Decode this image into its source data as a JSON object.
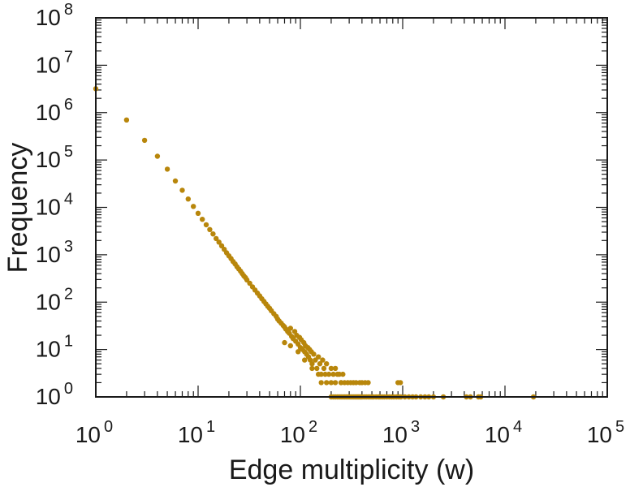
{
  "chart_data": {
    "type": "scatter",
    "title": "",
    "xlabel": "Edge multiplicity (w)",
    "ylabel": "Frequency",
    "x_scale": "log",
    "y_scale": "log",
    "xlim": [
      1,
      100000
    ],
    "ylim": [
      1,
      100000000
    ],
    "x_ticks": [
      {
        "base": "10",
        "exp": "0"
      },
      {
        "base": "10",
        "exp": "1"
      },
      {
        "base": "10",
        "exp": "2"
      },
      {
        "base": "10",
        "exp": "3"
      },
      {
        "base": "10",
        "exp": "4"
      },
      {
        "base": "10",
        "exp": "5"
      }
    ],
    "y_ticks": [
      {
        "base": "10",
        "exp": "0"
      },
      {
        "base": "10",
        "exp": "1"
      },
      {
        "base": "10",
        "exp": "2"
      },
      {
        "base": "10",
        "exp": "3"
      },
      {
        "base": "10",
        "exp": "4"
      },
      {
        "base": "10",
        "exp": "5"
      },
      {
        "base": "10",
        "exp": "6"
      },
      {
        "base": "10",
        "exp": "7"
      },
      {
        "base": "10",
        "exp": "8"
      }
    ],
    "grid": false,
    "marker_color": "#b8860b",
    "series": [
      {
        "points": [
          [
            1,
            3200000
          ],
          [
            2,
            700000
          ],
          [
            3,
            260000
          ],
          [
            4,
            120000
          ],
          [
            5,
            64000
          ],
          [
            6,
            36000
          ],
          [
            7,
            23000
          ],
          [
            8,
            15000
          ],
          [
            9,
            10500
          ],
          [
            10,
            7500
          ],
          [
            11,
            5600
          ],
          [
            12,
            4300
          ],
          [
            13,
            3400
          ],
          [
            14,
            2750
          ],
          [
            15,
            2200
          ],
          [
            16,
            1850
          ],
          [
            17,
            1550
          ],
          [
            18,
            1300
          ],
          [
            19,
            1100
          ],
          [
            20,
            950
          ],
          [
            21,
            830
          ],
          [
            22,
            720
          ],
          [
            23,
            640
          ],
          [
            24,
            560
          ],
          [
            25,
            500
          ],
          [
            26,
            450
          ],
          [
            27,
            400
          ],
          [
            28,
            360
          ],
          [
            29,
            330
          ],
          [
            30,
            295
          ],
          [
            32,
            250
          ],
          [
            34,
            210
          ],
          [
            36,
            180
          ],
          [
            38,
            155
          ],
          [
            40,
            135
          ],
          [
            42,
            118
          ],
          [
            44,
            104
          ],
          [
            46,
            92
          ],
          [
            48,
            82
          ],
          [
            50,
            74
          ],
          [
            52,
            66
          ],
          [
            55,
            57
          ],
          [
            58,
            50
          ],
          [
            60,
            44
          ],
          [
            62,
            40
          ],
          [
            65,
            36
          ],
          [
            68,
            32
          ],
          [
            70,
            30
          ],
          [
            72,
            27
          ],
          [
            75,
            24
          ],
          [
            78,
            22
          ],
          [
            80,
            28
          ],
          [
            82,
            19
          ],
          [
            85,
            17
          ],
          [
            88,
            24
          ],
          [
            90,
            15
          ],
          [
            92,
            20
          ],
          [
            95,
            13
          ],
          [
            98,
            18
          ],
          [
            100,
            11
          ],
          [
            102,
            16
          ],
          [
            105,
            10
          ],
          [
            108,
            14
          ],
          [
            110,
            9
          ],
          [
            112,
            12
          ],
          [
            115,
            8
          ],
          [
            118,
            11
          ],
          [
            120,
            7
          ],
          [
            123,
            10
          ],
          [
            125,
            6
          ],
          [
            128,
            9
          ],
          [
            130,
            5
          ],
          [
            135,
            8
          ],
          [
            140,
            6
          ],
          [
            145,
            4
          ],
          [
            150,
            7
          ],
          [
            155,
            5
          ],
          [
            160,
            3
          ],
          [
            165,
            6
          ],
          [
            170,
            4
          ],
          [
            175,
            3
          ],
          [
            180,
            5
          ],
          [
            190,
            3
          ],
          [
            200,
            4
          ],
          [
            210,
            3
          ],
          [
            220,
            4
          ],
          [
            230,
            3
          ],
          [
            240,
            3
          ],
          [
            250,
            2
          ],
          [
            260,
            3
          ],
          [
            70,
            14
          ],
          [
            80,
            12
          ],
          [
            95,
            9
          ],
          [
            110,
            6
          ],
          [
            130,
            4
          ],
          [
            150,
            3
          ],
          [
            160,
            2
          ],
          [
            180,
            2
          ],
          [
            200,
            2
          ],
          [
            220,
            2
          ],
          [
            250,
            2
          ],
          [
            270,
            2
          ],
          [
            290,
            2
          ],
          [
            310,
            2
          ],
          [
            330,
            2
          ],
          [
            350,
            2
          ],
          [
            380,
            2
          ],
          [
            400,
            2
          ],
          [
            430,
            2
          ],
          [
            460,
            2
          ],
          [
            900,
            2
          ],
          [
            950,
            2
          ],
          [
            200,
            1
          ],
          [
            210,
            1
          ],
          [
            220,
            1
          ],
          [
            230,
            1
          ],
          [
            240,
            1
          ],
          [
            250,
            1
          ],
          [
            260,
            1
          ],
          [
            270,
            1
          ],
          [
            280,
            1
          ],
          [
            290,
            1
          ],
          [
            300,
            1
          ],
          [
            310,
            1
          ],
          [
            320,
            1
          ],
          [
            330,
            1
          ],
          [
            340,
            1
          ],
          [
            350,
            1
          ],
          [
            360,
            1
          ],
          [
            370,
            1
          ],
          [
            380,
            1
          ],
          [
            390,
            1
          ],
          [
            400,
            1
          ],
          [
            420,
            1
          ],
          [
            440,
            1
          ],
          [
            460,
            1
          ],
          [
            480,
            1
          ],
          [
            500,
            1
          ],
          [
            520,
            1
          ],
          [
            550,
            1
          ],
          [
            580,
            1
          ],
          [
            600,
            1
          ],
          [
            630,
            1
          ],
          [
            660,
            1
          ],
          [
            700,
            1
          ],
          [
            740,
            1
          ],
          [
            780,
            1
          ],
          [
            820,
            1
          ],
          [
            870,
            1
          ],
          [
            920,
            1
          ],
          [
            960,
            1
          ],
          [
            1050,
            1
          ],
          [
            1150,
            1
          ],
          [
            1250,
            1
          ],
          [
            1350,
            1
          ],
          [
            1500,
            1
          ],
          [
            1650,
            1
          ],
          [
            1800,
            1
          ],
          [
            2000,
            1
          ],
          [
            2500,
            1
          ],
          [
            4200,
            1
          ],
          [
            4600,
            1
          ],
          [
            5500,
            1
          ],
          [
            5800,
            1
          ],
          [
            19000,
            1
          ]
        ]
      }
    ]
  }
}
